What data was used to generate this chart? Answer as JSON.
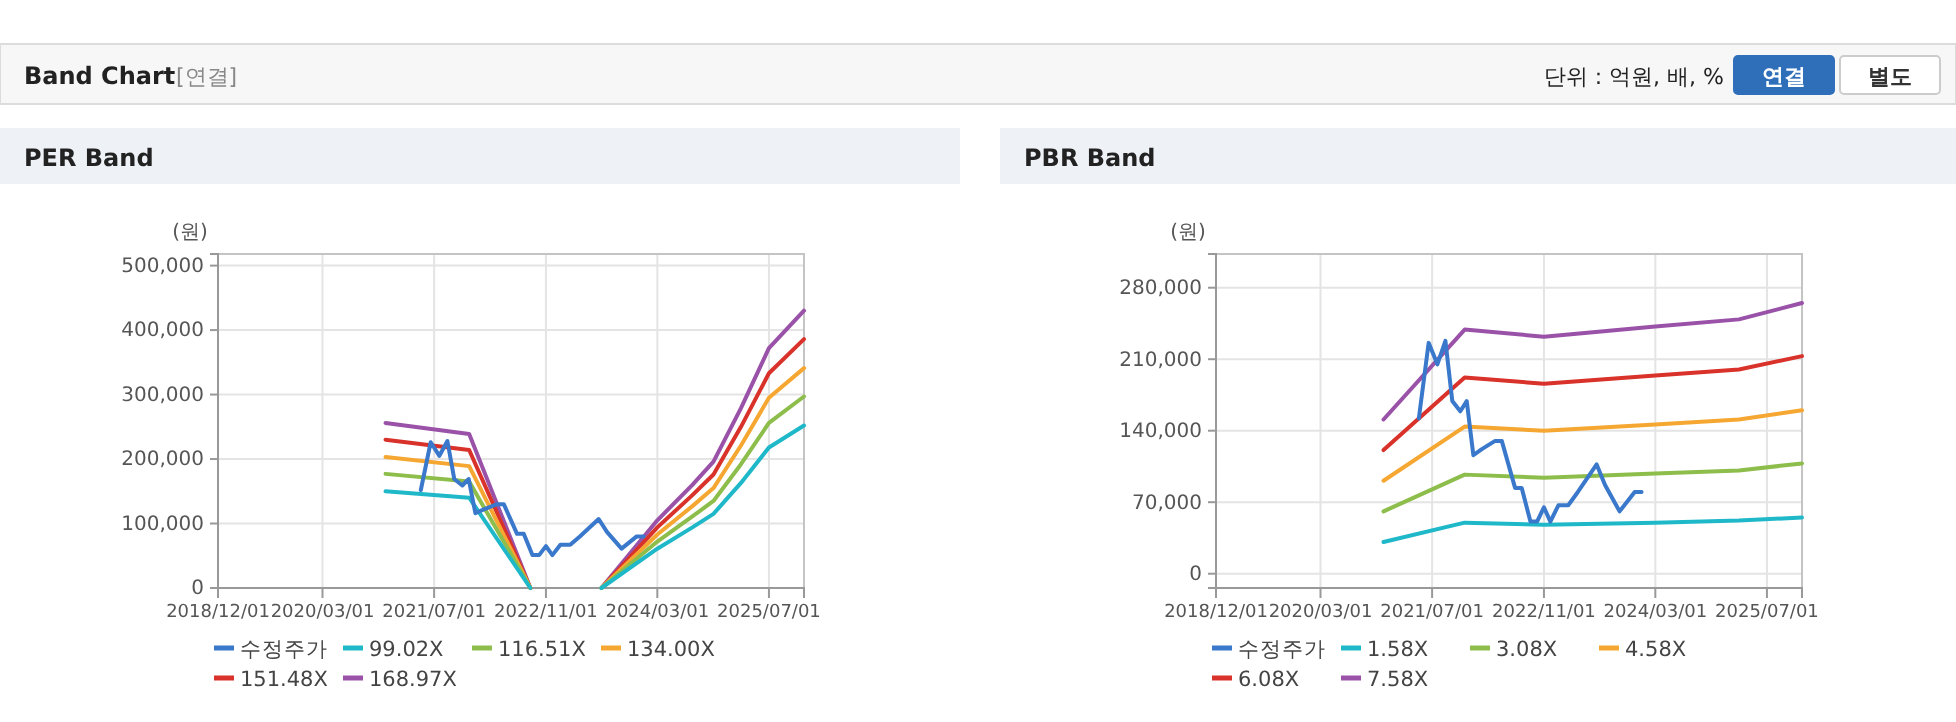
{
  "chart_data": [
    {
      "type": "line",
      "title": "PER Band",
      "ylabel": "(원)",
      "annotations": [
        "Band Chart",
        "[연결]",
        "단위 : 억원, 배, %",
        "연결",
        "별도"
      ],
      "x": [
        "2020-12-01",
        "2021-12-01",
        "2022-08-25",
        "2023-01-01",
        "2023-07-01",
        "2024-03-01",
        "2024-08-01",
        "2024-11-01",
        "2025-03-01",
        "2025-07-01",
        "2025-12-01"
      ],
      "series": [
        {
          "name": "수정주가",
          "color": "#3a78cb",
          "x": [
            "2021-05-04",
            "2021-06-16",
            "2021-07-24",
            "2021-08-28",
            "2021-09-27",
            "2021-11-01",
            "2021-11-29",
            "2021-12-28",
            "2022-02-03",
            "2022-04-02",
            "2022-05-01",
            "2022-06-28",
            "2022-07-27",
            "2022-09-03",
            "2022-10-02",
            "2022-11-01",
            "2022-11-29",
            "2023-01-03",
            "2023-02-15",
            "2023-03-29",
            "2023-06-19",
            "2023-07-25",
            "2023-09-27",
            "2023-12-02",
            "2024-01-01"
          ],
          "values": [
            152000,
            226000,
            205000,
            228000,
            169000,
            159000,
            169000,
            116000,
            122000,
            130000,
            130000,
            84000,
            84000,
            51000,
            51000,
            65000,
            51000,
            67000,
            67000,
            80000,
            107000,
            87000,
            61000,
            80000,
            80000
          ]
        },
        {
          "name": "99.02X",
          "color": "#1fb8c9",
          "values": [
            150000,
            140000,
            0,
            null,
            0,
            61000,
            94000,
            115000,
            163000,
            218000,
            252000
          ]
        },
        {
          "name": "116.51X",
          "color": "#8dbd4a",
          "values": [
            177000,
            165000,
            0,
            null,
            0,
            72000,
            111000,
            135000,
            192000,
            256000,
            297000
          ]
        },
        {
          "name": "134.00X",
          "color": "#f5a732",
          "values": [
            203000,
            189000,
            0,
            null,
            0,
            83000,
            127000,
            155000,
            221000,
            295000,
            341000
          ]
        },
        {
          "name": "151.48X",
          "color": "#d9322a",
          "values": [
            230000,
            214000,
            0,
            null,
            0,
            94000,
            144000,
            176000,
            250000,
            333000,
            386000
          ]
        },
        {
          "name": "168.97X",
          "color": "#9a52a8",
          "values": [
            256000,
            239000,
            0,
            null,
            0,
            105000,
            160000,
            196000,
            279000,
            372000,
            430000
          ]
        }
      ],
      "xlim": [
        "2018-12-01",
        "2025-12-01"
      ],
      "xticks": [
        {
          "value": "2018-12-01",
          "label": "2018/12/01"
        },
        {
          "value": "2020-03-01",
          "label": "2020/03/01"
        },
        {
          "value": "2021-07-01",
          "label": "2021/07/01"
        },
        {
          "value": "2022-11-01",
          "label": "2022/11/01"
        },
        {
          "value": "2024-03-01",
          "label": "2024/03/01"
        },
        {
          "value": "2025-07-01",
          "label": "2025/07/01"
        }
      ],
      "ylim": [
        0,
        518000
      ],
      "yticks": [
        {
          "value": 0,
          "label": "0"
        },
        {
          "value": 100000,
          "label": "100,000"
        },
        {
          "value": 200000,
          "label": "200,000"
        },
        {
          "value": 300000,
          "label": "300,000"
        },
        {
          "value": 400000,
          "label": "400,000"
        },
        {
          "value": 500000,
          "label": "500,000"
        }
      ],
      "grid": true,
      "legend": "bottom"
    },
    {
      "type": "line",
      "title": "PBR Band",
      "ylabel": "(원)",
      "x": [
        "2020-12-01",
        "2021-11-20",
        "2022-11-01",
        "2024-03-01",
        "2025-03-01",
        "2025-12-01"
      ],
      "series": [
        {
          "name": "수정주가",
          "color": "#3a78cb",
          "x": [
            "2021-05-04",
            "2021-06-16",
            "2021-07-24",
            "2021-08-28",
            "2021-09-27",
            "2021-11-01",
            "2021-11-29",
            "2021-12-28",
            "2022-02-03",
            "2022-04-02",
            "2022-05-01",
            "2022-06-28",
            "2022-07-27",
            "2022-09-03",
            "2022-10-02",
            "2022-11-01",
            "2022-11-29",
            "2023-01-03",
            "2023-02-15",
            "2023-03-29",
            "2023-06-19",
            "2023-07-25",
            "2023-09-27",
            "2023-12-02",
            "2024-01-01"
          ],
          "values": [
            152000,
            226000,
            205000,
            228000,
            169000,
            159000,
            169000,
            116000,
            122000,
            130000,
            130000,
            84000,
            84000,
            51000,
            51000,
            65000,
            51000,
            67000,
            67000,
            80000,
            107000,
            87000,
            61000,
            80000,
            80000
          ]
        },
        {
          "name": "1.58X",
          "color": "#1fb8c9",
          "values": [
            31000,
            50000,
            48000,
            50000,
            52000,
            55000
          ]
        },
        {
          "name": "3.08X",
          "color": "#8dbd4a",
          "values": [
            61000,
            97000,
            94000,
            98000,
            101000,
            108000
          ]
        },
        {
          "name": "4.58X",
          "color": "#f5a732",
          "values": [
            91000,
            144000,
            140000,
            146000,
            151000,
            160000
          ]
        },
        {
          "name": "6.08X",
          "color": "#d9322a",
          "values": [
            121000,
            192000,
            186000,
            194000,
            200000,
            213000
          ]
        },
        {
          "name": "7.58X",
          "color": "#9a52a8",
          "values": [
            151000,
            239000,
            232000,
            242000,
            249000,
            265000
          ]
        }
      ],
      "xlim": [
        "2018-12-01",
        "2025-12-01"
      ],
      "xticks": [
        {
          "value": "2018-12-01",
          "label": "2018/12/01"
        },
        {
          "value": "2020-03-01",
          "label": "2020/03/01"
        },
        {
          "value": "2021-07-01",
          "label": "2021/07/01"
        },
        {
          "value": "2022-11-01",
          "label": "2022/11/01"
        },
        {
          "value": "2024-03-01",
          "label": "2024/03/01"
        },
        {
          "value": "2025-07-01",
          "label": "2025/07/01"
        }
      ],
      "ylim": [
        -14000,
        313000
      ],
      "yticks": [
        {
          "value": 0,
          "label": "0"
        },
        {
          "value": 70000,
          "label": "70,000"
        },
        {
          "value": 140000,
          "label": "140,000"
        },
        {
          "value": 210000,
          "label": "210,000"
        },
        {
          "value": 280000,
          "label": "280,000"
        }
      ],
      "grid": true,
      "legend": "bottom"
    }
  ]
}
